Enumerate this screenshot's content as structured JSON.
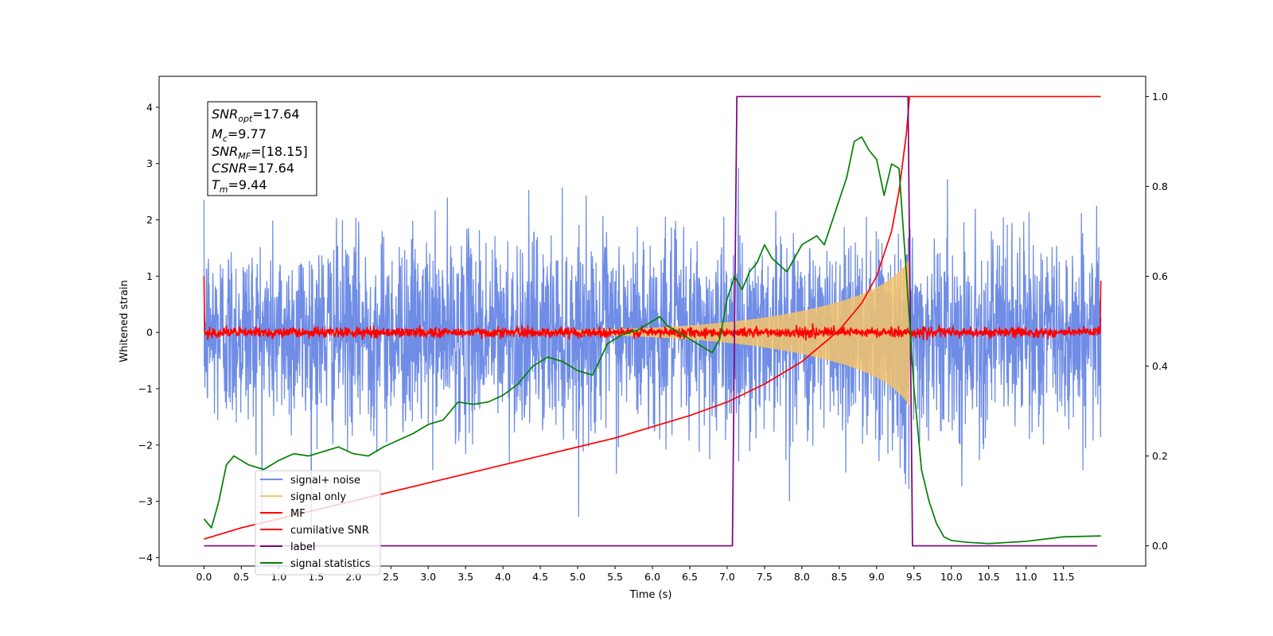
{
  "chart_data": {
    "type": "line",
    "xlabel": "Time (s)",
    "ylabel": "Whitened strain",
    "xlim": [
      -0.6,
      12.6
    ],
    "ylim": [
      -4.15,
      4.55
    ],
    "y2lim": [
      -0.045,
      1.045
    ],
    "xticks": [
      "0.0",
      "0.5",
      "1.0",
      "1.5",
      "2.0",
      "2.5",
      "3.0",
      "3.5",
      "4.0",
      "4.5",
      "5.0",
      "5.5",
      "6.0",
      "6.5",
      "7.0",
      "7.5",
      "8.0",
      "8.5",
      "9.0",
      "9.5",
      "10.0",
      "10.5",
      "11.0",
      "11.5"
    ],
    "yticks": [
      "4",
      "3",
      "2",
      "1",
      "0",
      "−1",
      "−2",
      "−3",
      "−4"
    ],
    "y2ticks": [
      "1.0",
      "0.8",
      "0.6",
      "0.4",
      "0.2",
      "0.0"
    ],
    "grid": false,
    "legend_position": "lower-left",
    "legend": [
      "signal+ noise",
      "signal only",
      "MF",
      "cumilative SNR",
      "label",
      "signal statistics"
    ],
    "annotation": {
      "lines": [
        {
          "main": "SNR",
          "sub": "opt",
          "value": "=17.64"
        },
        {
          "main": "M",
          "sub": "c",
          "value": "=9.77"
        },
        {
          "main": "SNR",
          "sub": "MF",
          "value": "=[18.15]"
        },
        {
          "main": "CSNR",
          "sub": "",
          "value": "=17.64"
        },
        {
          "main": "T",
          "sub": "m",
          "value": "=9.44"
        }
      ]
    },
    "series": [
      {
        "name": "signal+ noise",
        "color": "#6f8de6",
        "axis": "left",
        "noise_std": 0.85,
        "duration": 12.0
      },
      {
        "name": "signal only",
        "color": "#f5c36b",
        "axis": "left",
        "amp_start": 0.02,
        "amp_end": 1.0,
        "t_end": 9.44
      },
      {
        "name": "MF",
        "color": "#ff0000",
        "axis": "left",
        "noise_std": 0.045,
        "start": 1.0,
        "end": 0.92
      },
      {
        "name": "cumilative SNR",
        "color": "#ff0000",
        "axis": "right",
        "x": [
          0.0,
          0.5,
          1.0,
          1.5,
          2.0,
          2.5,
          3.0,
          3.5,
          4.0,
          4.5,
          5.0,
          5.5,
          6.0,
          6.5,
          7.0,
          7.5,
          8.0,
          8.5,
          8.8,
          9.0,
          9.2,
          9.3,
          9.4,
          9.44,
          9.5,
          10.0,
          11.0,
          12.0
        ],
        "y": [
          0.015,
          0.04,
          0.06,
          0.08,
          0.1,
          0.12,
          0.14,
          0.16,
          0.18,
          0.2,
          0.22,
          0.24,
          0.265,
          0.29,
          0.32,
          0.36,
          0.41,
          0.48,
          0.54,
          0.6,
          0.7,
          0.79,
          0.92,
          1.0,
          1.0,
          1.0,
          1.0,
          1.0
        ]
      },
      {
        "name": "label",
        "color": "#800080",
        "axis": "right",
        "x": [
          0.0,
          7.07,
          7.13,
          9.42,
          9.48,
          11.95
        ],
        "y": [
          0.0,
          0.0,
          1.0,
          1.0,
          0.0,
          0.0
        ]
      },
      {
        "name": "signal statistics",
        "color": "#008000",
        "axis": "right",
        "x": [
          0.0,
          0.1,
          0.2,
          0.3,
          0.4,
          0.5,
          0.6,
          0.7,
          0.8,
          0.9,
          1.0,
          1.2,
          1.4,
          1.6,
          1.8,
          2.0,
          2.2,
          2.4,
          2.6,
          2.8,
          3.0,
          3.2,
          3.4,
          3.6,
          3.8,
          4.0,
          4.2,
          4.4,
          4.6,
          4.8,
          5.0,
          5.2,
          5.4,
          5.6,
          5.8,
          6.0,
          6.1,
          6.2,
          6.4,
          6.6,
          6.8,
          6.9,
          7.0,
          7.1,
          7.2,
          7.3,
          7.4,
          7.5,
          7.6,
          7.8,
          8.0,
          8.1,
          8.2,
          8.3,
          8.4,
          8.6,
          8.7,
          8.8,
          8.9,
          9.0,
          9.1,
          9.2,
          9.3,
          9.4,
          9.5,
          9.6,
          9.7,
          9.8,
          9.9,
          10.0,
          10.2,
          10.5,
          11.0,
          11.5,
          12.0
        ],
        "y": [
          0.06,
          0.04,
          0.1,
          0.18,
          0.2,
          0.19,
          0.18,
          0.175,
          0.17,
          0.18,
          0.19,
          0.205,
          0.2,
          0.21,
          0.22,
          0.205,
          0.2,
          0.22,
          0.235,
          0.25,
          0.27,
          0.28,
          0.32,
          0.315,
          0.32,
          0.335,
          0.36,
          0.4,
          0.42,
          0.41,
          0.39,
          0.38,
          0.45,
          0.47,
          0.48,
          0.5,
          0.51,
          0.49,
          0.47,
          0.45,
          0.43,
          0.46,
          0.55,
          0.6,
          0.57,
          0.61,
          0.63,
          0.67,
          0.64,
          0.61,
          0.67,
          0.68,
          0.69,
          0.67,
          0.72,
          0.82,
          0.9,
          0.91,
          0.88,
          0.86,
          0.78,
          0.85,
          0.84,
          0.6,
          0.35,
          0.17,
          0.1,
          0.05,
          0.02,
          0.012,
          0.008,
          0.005,
          0.01,
          0.02,
          0.022
        ]
      }
    ]
  }
}
